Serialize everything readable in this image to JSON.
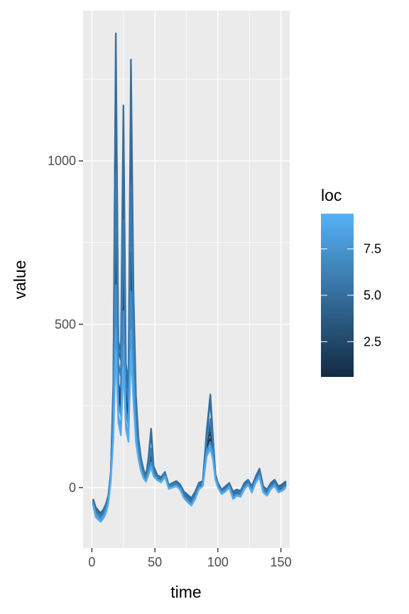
{
  "chart_data": {
    "type": "line",
    "title": "",
    "xlabel": "time",
    "ylabel": "value",
    "xlim": [
      -7,
      157
    ],
    "ylim": [
      -185,
      1460
    ],
    "x_ticks": [
      0,
      50,
      100,
      150
    ],
    "y_ticks": [
      0,
      500,
      1000
    ],
    "grid": true,
    "legend": {
      "title": "loc",
      "type": "colorbar",
      "range": [
        0.6,
        9.4
      ],
      "ticks": [
        2.5,
        5.0,
        7.5
      ],
      "tick_labels": [
        "2.5",
        "5.0",
        "7.5"
      ],
      "low_color": "#132b43",
      "high_color": "#56b1f7",
      "position": "right"
    },
    "x": [
      1,
      3,
      5,
      7,
      9,
      11,
      13,
      15,
      17,
      19,
      21,
      23,
      25,
      27,
      29,
      31,
      33,
      35,
      37,
      39,
      41,
      43,
      45,
      47,
      49,
      52,
      55,
      58,
      61,
      64,
      67,
      70,
      73,
      76,
      79,
      82,
      85,
      88,
      91,
      94,
      96,
      98,
      100,
      103,
      106,
      109,
      112,
      115,
      118,
      121,
      124,
      127,
      130,
      133,
      136,
      139,
      142,
      145,
      148,
      151,
      154
    ],
    "series": [
      {
        "loc": 1,
        "values": [
          -40,
          -70,
          -80,
          -85,
          -75,
          -60,
          -30,
          40,
          200,
          740,
          280,
          240,
          620,
          260,
          200,
          590,
          360,
          180,
          100,
          60,
          30,
          20,
          50,
          80,
          40,
          25,
          20,
          40,
          0,
          10,
          15,
          5,
          -20,
          -30,
          -40,
          -20,
          10,
          15,
          120,
          150,
          110,
          30,
          5,
          -10,
          0,
          10,
          -20,
          -10,
          -15,
          10,
          20,
          0,
          30,
          50,
          0,
          -10,
          10,
          20,
          0,
          5,
          15
        ]
      },
      {
        "loc": 2,
        "values": [
          -45,
          -75,
          -85,
          -90,
          -80,
          -65,
          -35,
          35,
          220,
          820,
          300,
          260,
          680,
          280,
          210,
          650,
          390,
          190,
          110,
          65,
          35,
          25,
          55,
          90,
          45,
          28,
          22,
          38,
          2,
          8,
          12,
          2,
          -22,
          -35,
          -45,
          -25,
          5,
          12,
          130,
          170,
          120,
          35,
          8,
          -12,
          -3,
          8,
          -25,
          -15,
          -18,
          5,
          18,
          -5,
          25,
          45,
          -5,
          -15,
          5,
          15,
          -5,
          0,
          10
        ]
      },
      {
        "loc": 3,
        "values": [
          -50,
          -80,
          -88,
          -92,
          -82,
          -68,
          -38,
          32,
          240,
          900,
          320,
          280,
          740,
          300,
          220,
          720,
          420,
          200,
          115,
          70,
          38,
          28,
          60,
          100,
          48,
          30,
          24,
          42,
          4,
          6,
          10,
          0,
          -25,
          -38,
          -48,
          -28,
          2,
          10,
          140,
          190,
          130,
          38,
          10,
          -14,
          -5,
          6,
          -28,
          -18,
          -20,
          2,
          15,
          -8,
          22,
          40,
          -8,
          -18,
          2,
          12,
          -8,
          -3,
          8
        ]
      },
      {
        "loc": 4,
        "values": [
          -35,
          -60,
          -70,
          -78,
          -68,
          -52,
          -25,
          45,
          300,
          1280,
          420,
          390,
          1020,
          360,
          300,
          1180,
          560,
          260,
          140,
          85,
          50,
          35,
          90,
          170,
          60,
          35,
          30,
          45,
          5,
          12,
          18,
          8,
          -15,
          -25,
          -35,
          -15,
          12,
          18,
          160,
          270,
          150,
          40,
          12,
          -8,
          2,
          12,
          -15,
          -8,
          -12,
          12,
          22,
          2,
          32,
          55,
          2,
          -8,
          12,
          22,
          2,
          8,
          18
        ]
      },
      {
        "loc": 5,
        "values": [
          -38,
          -65,
          -75,
          -82,
          -72,
          -56,
          -28,
          42,
          320,
          1390,
          450,
          410,
          1170,
          380,
          320,
          1310,
          600,
          280,
          150,
          90,
          55,
          38,
          95,
          180,
          65,
          38,
          32,
          48,
          8,
          14,
          20,
          10,
          -12,
          -22,
          -32,
          -12,
          15,
          20,
          170,
          285,
          160,
          42,
          14,
          -6,
          4,
          14,
          -12,
          -6,
          -10,
          14,
          24,
          4,
          34,
          58,
          4,
          -6,
          14,
          24,
          4,
          10,
          20
        ]
      },
      {
        "loc": 6,
        "values": [
          -42,
          -72,
          -82,
          -88,
          -78,
          -62,
          -32,
          38,
          280,
          960,
          380,
          340,
          820,
          330,
          260,
          900,
          480,
          230,
          125,
          78,
          42,
          30,
          70,
          120,
          52,
          32,
          26,
          44,
          3,
          9,
          14,
          4,
          -18,
          -32,
          -42,
          -22,
          8,
          14,
          145,
          210,
          138,
          36,
          9,
          -10,
          -2,
          9,
          -22,
          -12,
          -16,
          6,
          18,
          -3,
          26,
          46,
          -3,
          -12,
          6,
          16,
          -3,
          2,
          12
        ]
      },
      {
        "loc": 7,
        "values": [
          -48,
          -78,
          -86,
          -95,
          -85,
          -70,
          -40,
          30,
          200,
          620,
          260,
          220,
          540,
          240,
          190,
          600,
          340,
          170,
          100,
          60,
          32,
          22,
          48,
          78,
          40,
          26,
          20,
          36,
          0,
          4,
          8,
          -2,
          -28,
          -40,
          -50,
          -30,
          0,
          8,
          110,
          140,
          100,
          30,
          4,
          -16,
          -8,
          4,
          -30,
          -20,
          -22,
          0,
          12,
          -10,
          20,
          38,
          -10,
          -20,
          0,
          10,
          -10,
          -5,
          5
        ]
      },
      {
        "loc": 8,
        "values": [
          -52,
          -85,
          -92,
          -100,
          -90,
          -75,
          -45,
          25,
          170,
          480,
          220,
          180,
          420,
          200,
          160,
          470,
          290,
          150,
          90,
          55,
          30,
          20,
          42,
          68,
          36,
          24,
          18,
          34,
          -2,
          2,
          6,
          -4,
          -30,
          -42,
          -52,
          -32,
          -2,
          6,
          100,
          125,
          92,
          28,
          2,
          -18,
          -10,
          2,
          -32,
          -22,
          -25,
          -2,
          10,
          -12,
          18,
          35,
          -12,
          -22,
          -2,
          8,
          -12,
          -8,
          3
        ]
      },
      {
        "loc": 9,
        "values": [
          -55,
          -90,
          -98,
          -105,
          -95,
          -80,
          -50,
          20,
          150,
          420,
          200,
          160,
          370,
          180,
          140,
          420,
          260,
          140,
          85,
          50,
          28,
          18,
          40,
          62,
          34,
          22,
          16,
          32,
          -4,
          0,
          4,
          -6,
          -32,
          -45,
          -55,
          -35,
          -5,
          4,
          95,
          118,
          88,
          25,
          0,
          -20,
          -12,
          0,
          -35,
          -25,
          -28,
          -5,
          8,
          -15,
          15,
          32,
          -15,
          -25,
          -5,
          5,
          -15,
          -10,
          0
        ]
      }
    ]
  }
}
